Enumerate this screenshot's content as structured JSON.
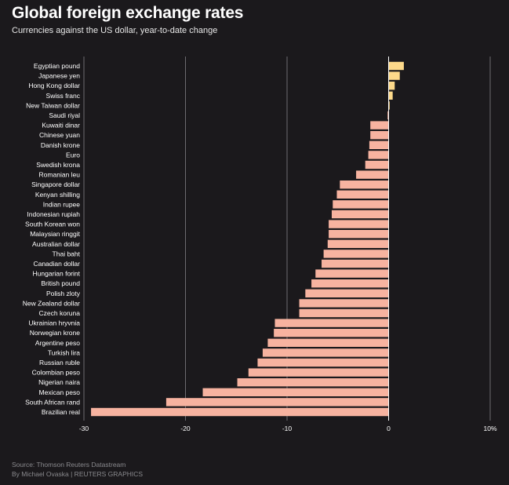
{
  "title": "Global foreign exchange rates",
  "subtitle": "Currencies against the US dollar, year-to-date change",
  "source": "Source: Thomson Reuters Datastream",
  "byline": "By Michael Ovaska | REUTERS GRAPHICS",
  "colors": {
    "background": "#1b191c",
    "positive": "#fdd98a",
    "negative": "#f7b3a0",
    "gridline": "#6d6b70",
    "zeroline": "#ffffff"
  },
  "chart_data": {
    "type": "bar",
    "orientation": "horizontal",
    "categories": [
      "Egyptian pound",
      "Japanese yen",
      "Hong Kong dollar",
      "Swiss franc",
      "New Taiwan dollar",
      "Saudi riyal",
      "Kuwaiti dinar",
      "Chinese yuan",
      "Danish krone",
      "Euro",
      "Swedish krona",
      "Romanian leu",
      "Singapore dollar",
      "Kenyan shilling",
      "Indian rupee",
      "Indonesian rupiah",
      "South Korean won",
      "Malaysian ringgit",
      "Australian dollar",
      "Thai baht",
      "Canadian dollar",
      "Hungarian forint",
      "British pound",
      "Polish zloty",
      "New Zealand dollar",
      "Czech koruna",
      "Ukrainian hryvnia",
      "Norwegian krone",
      "Argentine peso",
      "Turkish lira",
      "Russian ruble",
      "Colombian peso",
      "Nigerian naira",
      "Mexican peso",
      "South African rand",
      "Brazilian real"
    ],
    "values": [
      1.5,
      1.1,
      0.6,
      0.4,
      0.1,
      -0.1,
      -1.8,
      -1.8,
      -1.9,
      -2.0,
      -2.3,
      -3.2,
      -4.8,
      -5.1,
      -5.5,
      -5.6,
      -5.9,
      -5.9,
      -6.0,
      -6.4,
      -6.6,
      -7.2,
      -7.6,
      -8.2,
      -8.8,
      -8.8,
      -11.2,
      -11.3,
      -11.9,
      -12.4,
      -12.9,
      -13.8,
      -14.9,
      -18.3,
      -21.9,
      -29.3
    ],
    "xlim": [
      -30,
      10
    ],
    "xticks": [
      "-30",
      "-20",
      "-10",
      "0",
      "10%"
    ],
    "grid": true,
    "xlabel": "",
    "ylabel": ""
  }
}
